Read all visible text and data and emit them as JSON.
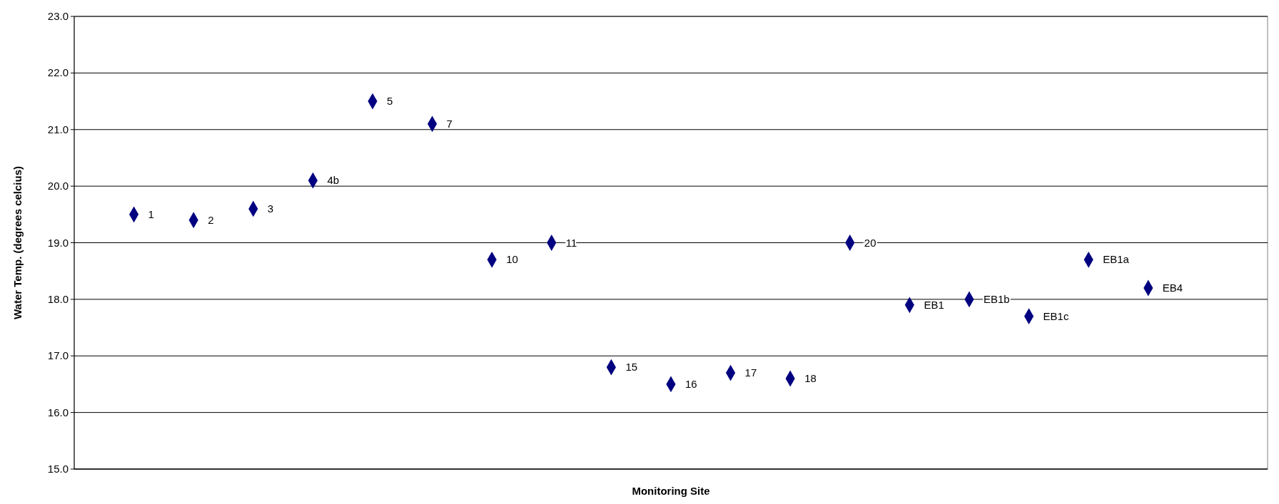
{
  "chart_data": {
    "type": "scatter",
    "xlabel": "Monitoring Site",
    "ylabel": "Water Temp. (degrees celcius)",
    "categories": [
      "1",
      "2",
      "3",
      "4b",
      "5",
      "7",
      "10",
      "11",
      "15",
      "16",
      "17",
      "18",
      "20",
      "EB1",
      "EB1b",
      "EB1c",
      "EB1a",
      "EB4"
    ],
    "series": [
      {
        "color": "#000080",
        "values": [
          19.5,
          19.4,
          19.6,
          20.1,
          21.5,
          21.1,
          18.7,
          19.0,
          16.8,
          16.5,
          16.7,
          16.6,
          19.0,
          17.9,
          18.0,
          17.7,
          18.7,
          18.2
        ]
      }
    ],
    "ylim": [
      15,
      23
    ],
    "yticks": [
      {
        "value": 15,
        "label": "15.0"
      },
      {
        "value": 16,
        "label": "16.0"
      },
      {
        "value": 17,
        "label": "17.0"
      },
      {
        "value": 18,
        "label": "18.0"
      },
      {
        "value": 19,
        "label": "19.0"
      },
      {
        "value": 20,
        "label": "20.0"
      },
      {
        "value": 21,
        "label": "21.0"
      },
      {
        "value": 22,
        "label": "22.0"
      },
      {
        "value": 23,
        "label": "23.0"
      }
    ],
    "grid": "y",
    "marker": "diamond",
    "tick_labels": "y"
  }
}
